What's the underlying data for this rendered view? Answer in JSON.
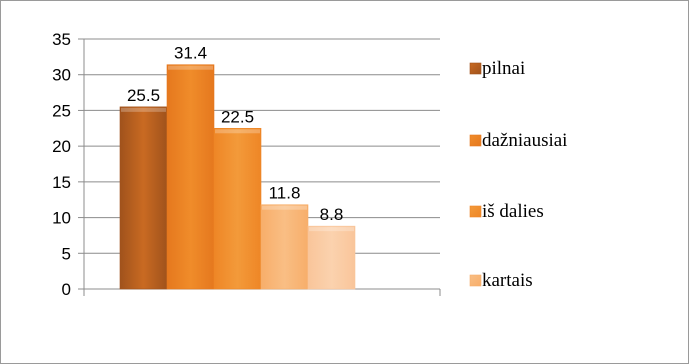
{
  "chart_data": {
    "type": "bar",
    "title": "",
    "xlabel": "",
    "ylabel": "",
    "ylim": [
      0,
      35
    ],
    "yticks": [
      0,
      5,
      10,
      15,
      20,
      25,
      30,
      35
    ],
    "grid": true,
    "legend_position": "right",
    "series": [
      {
        "name": "pilnai",
        "value": 25.5,
        "color_top": "#a0521c",
        "color_bottom": "#c96a22"
      },
      {
        "name": "dažniausiai",
        "value": 31.4,
        "color_top": "#e5781e",
        "color_bottom": "#f08c2a"
      },
      {
        "name": "iš dalies",
        "value": 22.5,
        "color_top": "#ee8626",
        "color_bottom": "#f39a3a"
      },
      {
        "name": "kartais",
        "value": 11.8,
        "color_top": "#f7ae6a",
        "color_bottom": "#f9be84"
      },
      {
        "name": "",
        "value": 8.8,
        "color_top": "#f9c59a",
        "color_bottom": "#fbd2ae"
      }
    ],
    "data_labels": [
      "25.5",
      "31.4",
      "22.5",
      "11.8",
      "8.8"
    ],
    "legend": [
      "pilnai",
      "dažniausiai",
      "iš dalies",
      "kartais"
    ]
  }
}
